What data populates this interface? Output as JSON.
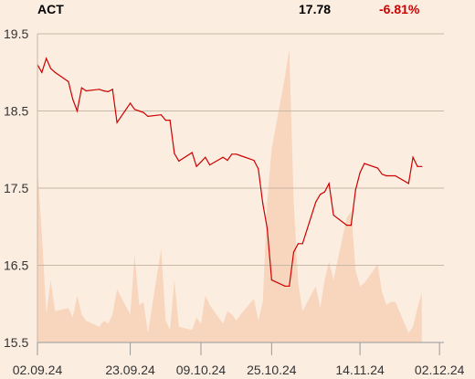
{
  "header": {
    "ticker": "ACT",
    "price": "17.78",
    "change": "-6.81%"
  },
  "colors": {
    "background": "#fcede1",
    "line": "#cc0000",
    "volume_fill": "#f8d5bd",
    "grid": "#c8b8a8",
    "negative_change": "#cc0000",
    "axis_text": "#333333"
  },
  "chart_data": {
    "type": "line",
    "title": "",
    "xlabel": "",
    "ylabel": "",
    "ylim": [
      15.5,
      19.5
    ],
    "yticks": [
      15.5,
      16.5,
      17.5,
      18.5,
      19.5
    ],
    "ytick_labels": [
      "15.5",
      "16.5",
      "17.5",
      "18.5",
      "19.5"
    ],
    "x_start": "2024-09-02",
    "x_end": "2024-12-03",
    "xticks": [
      {
        "date": "2024-09-02",
        "label": "02.09.24"
      },
      {
        "date": "2024-09-23",
        "label": "23.09.24"
      },
      {
        "date": "2024-10-09",
        "label": "09.10.24"
      },
      {
        "date": "2024-10-25",
        "label": "25.10.24"
      },
      {
        "date": "2024-11-14",
        "label": "14.11.24"
      },
      {
        "date": "2024-12-02",
        "label": "02.12.24"
      }
    ],
    "grid": "horizontal",
    "series": [
      {
        "values": [
          [
            "2024-09-02",
            19.1
          ],
          [
            "2024-09-03",
            19.0
          ],
          [
            "2024-09-04",
            19.18
          ],
          [
            "2024-09-05",
            19.05
          ],
          [
            "2024-09-06",
            19.0
          ],
          [
            "2024-09-09",
            18.88
          ],
          [
            "2024-09-10",
            18.65
          ],
          [
            "2024-09-11",
            18.5
          ],
          [
            "2024-09-12",
            18.8
          ],
          [
            "2024-09-13",
            18.76
          ],
          [
            "2024-09-16",
            18.78
          ],
          [
            "2024-09-17",
            18.76
          ],
          [
            "2024-09-18",
            18.75
          ],
          [
            "2024-09-19",
            18.78
          ],
          [
            "2024-09-20",
            18.35
          ],
          [
            "2024-09-23",
            18.6
          ],
          [
            "2024-09-24",
            18.52
          ],
          [
            "2024-09-25",
            18.5
          ],
          [
            "2024-09-26",
            18.48
          ],
          [
            "2024-09-27",
            18.43
          ],
          [
            "2024-09-30",
            18.45
          ],
          [
            "2024-10-01",
            18.38
          ],
          [
            "2024-10-02",
            18.38
          ],
          [
            "2024-10-03",
            17.95
          ],
          [
            "2024-10-04",
            17.85
          ],
          [
            "2024-10-07",
            17.96
          ],
          [
            "2024-10-08",
            17.78
          ],
          [
            "2024-10-09",
            17.84
          ],
          [
            "2024-10-10",
            17.9
          ],
          [
            "2024-10-11",
            17.8
          ],
          [
            "2024-10-14",
            17.9
          ],
          [
            "2024-10-15",
            17.86
          ],
          [
            "2024-10-16",
            17.94
          ],
          [
            "2024-10-17",
            17.94
          ],
          [
            "2024-10-18",
            17.92
          ],
          [
            "2024-10-21",
            17.86
          ],
          [
            "2024-10-22",
            17.75
          ],
          [
            "2024-10-23",
            17.3
          ],
          [
            "2024-10-24",
            16.98
          ],
          [
            "2024-10-25",
            16.31
          ],
          [
            "2024-10-28",
            16.23
          ],
          [
            "2024-10-29",
            16.23
          ],
          [
            "2024-10-30",
            16.67
          ],
          [
            "2024-10-31",
            16.78
          ],
          [
            "2024-11-01",
            16.78
          ],
          [
            "2024-11-04",
            17.32
          ],
          [
            "2024-11-05",
            17.42
          ],
          [
            "2024-11-06",
            17.45
          ],
          [
            "2024-11-07",
            17.56
          ],
          [
            "2024-11-08",
            17.15
          ],
          [
            "2024-11-11",
            17.02
          ],
          [
            "2024-11-12",
            17.02
          ],
          [
            "2024-11-13",
            17.48
          ],
          [
            "2024-11-14",
            17.7
          ],
          [
            "2024-11-15",
            17.82
          ],
          [
            "2024-11-18",
            17.76
          ],
          [
            "2024-11-19",
            17.68
          ],
          [
            "2024-11-20",
            17.66
          ],
          [
            "2024-11-21",
            17.66
          ],
          [
            "2024-11-22",
            17.66
          ],
          [
            "2024-11-25",
            17.56
          ],
          [
            "2024-11-26",
            17.9
          ],
          [
            "2024-11-27",
            17.78
          ],
          [
            "2024-11-28",
            17.78
          ]
        ]
      }
    ],
    "volume_area": {
      "values": [
        [
          "2024-09-02",
          0.56
        ],
        [
          "2024-09-03",
          0.35
        ],
        [
          "2024-09-04",
          0.09
        ],
        [
          "2024-09-05",
          0.2
        ],
        [
          "2024-09-06",
          0.1
        ],
        [
          "2024-09-09",
          0.11
        ],
        [
          "2024-09-10",
          0.08
        ],
        [
          "2024-09-11",
          0.15
        ],
        [
          "2024-09-12",
          0.09
        ],
        [
          "2024-09-13",
          0.07
        ],
        [
          "2024-09-16",
          0.05
        ],
        [
          "2024-09-17",
          0.07
        ],
        [
          "2024-09-18",
          0.06
        ],
        [
          "2024-09-19",
          0.09
        ],
        [
          "2024-09-20",
          0.17
        ],
        [
          "2024-09-23",
          0.09
        ],
        [
          "2024-09-24",
          0.28
        ],
        [
          "2024-09-25",
          0.12
        ],
        [
          "2024-09-26",
          0.13
        ],
        [
          "2024-09-27",
          0.03
        ],
        [
          "2024-09-30",
          0.3
        ],
        [
          "2024-10-01",
          0.07
        ],
        [
          "2024-10-02",
          0.04
        ],
        [
          "2024-10-03",
          0.2
        ],
        [
          "2024-10-04",
          0.05
        ],
        [
          "2024-10-07",
          0.04
        ],
        [
          "2024-10-08",
          0.08
        ],
        [
          "2024-10-09",
          0.06
        ],
        [
          "2024-10-10",
          0.15
        ],
        [
          "2024-10-11",
          0.12
        ],
        [
          "2024-10-14",
          0.06
        ],
        [
          "2024-10-15",
          0.1
        ],
        [
          "2024-10-16",
          0.09
        ],
        [
          "2024-10-17",
          0.07
        ],
        [
          "2024-10-18",
          0.09
        ],
        [
          "2024-10-21",
          0.14
        ],
        [
          "2024-10-22",
          0.07
        ],
        [
          "2024-10-23",
          0.13
        ],
        [
          "2024-10-24",
          0.45
        ],
        [
          "2024-10-25",
          0.62
        ],
        [
          "2024-10-28",
          0.85
        ],
        [
          "2024-10-29",
          0.94
        ],
        [
          "2024-10-30",
          0.45
        ],
        [
          "2024-10-31",
          0.19
        ],
        [
          "2024-11-01",
          0.1
        ],
        [
          "2024-11-04",
          0.18
        ],
        [
          "2024-11-05",
          0.11
        ],
        [
          "2024-11-06",
          0.2
        ],
        [
          "2024-11-07",
          0.26
        ],
        [
          "2024-11-08",
          0.2
        ],
        [
          "2024-11-11",
          0.4
        ],
        [
          "2024-11-12",
          0.42
        ],
        [
          "2024-11-13",
          0.23
        ],
        [
          "2024-11-14",
          0.18
        ],
        [
          "2024-11-15",
          0.19
        ],
        [
          "2024-11-18",
          0.25
        ],
        [
          "2024-11-19",
          0.16
        ],
        [
          "2024-11-20",
          0.12
        ],
        [
          "2024-11-21",
          0.13
        ],
        [
          "2024-11-22",
          0.13
        ],
        [
          "2024-11-25",
          0.03
        ],
        [
          "2024-11-26",
          0.05
        ],
        [
          "2024-11-27",
          0.11
        ],
        [
          "2024-11-28",
          0.16
        ]
      ]
    }
  }
}
